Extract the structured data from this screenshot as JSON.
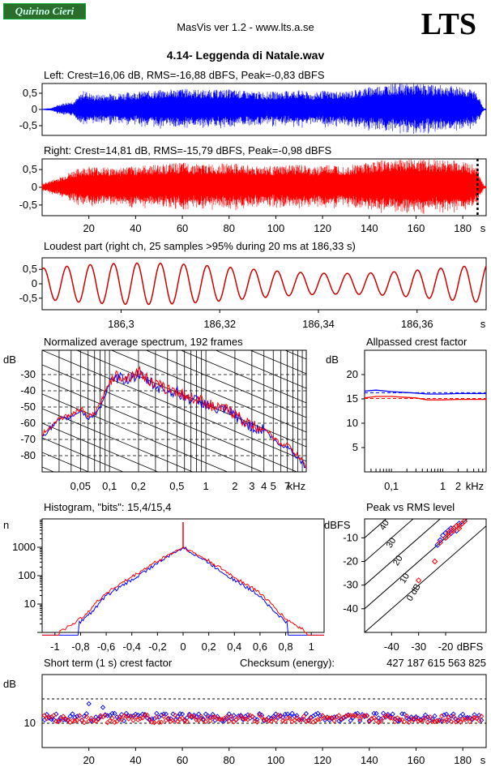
{
  "header": {
    "badge": "Quirino Cieri",
    "app_title": "MasVis ver 1.2 - www.lts.a.se",
    "logo": "LTS",
    "file_title": "4.14- Leggenda di Natale.wav"
  },
  "colors": {
    "left": "#0000ff",
    "right": "#ff0000",
    "wave_detail": "#cc0000"
  },
  "chart_data": [
    {
      "id": "left_waveform",
      "type": "area",
      "title": "Left: Crest=16,06 dB, RMS=-16,88 dBFS, Peak=-0,83 dBFS",
      "y_ticks": [
        "0,5",
        "0",
        "-0,5"
      ],
      "ylim": [
        -0.8,
        0.8
      ],
      "x_ticks": [],
      "xlabel": "",
      "series": [
        {
          "color": "#0000ff",
          "envelope_t": [
            0,
            4,
            8,
            14,
            18,
            22,
            30,
            40,
            50,
            60,
            70,
            80,
            90,
            100,
            110,
            116,
            120,
            130,
            140,
            150,
            160,
            170,
            180,
            186,
            189
          ],
          "envelope_peak": [
            0.02,
            0.05,
            0.18,
            0.28,
            0.6,
            0.45,
            0.5,
            0.55,
            0.6,
            0.65,
            0.6,
            0.62,
            0.55,
            0.55,
            0.6,
            0.5,
            0.58,
            0.55,
            0.7,
            0.8,
            0.8,
            0.75,
            0.7,
            0.55,
            0.03
          ]
        }
      ]
    },
    {
      "id": "right_waveform",
      "type": "area",
      "title": "Right: Crest=14,81 dB, RMS=-15,79 dBFS, Peak=-0,98 dBFS",
      "y_ticks": [
        "0,5",
        "0",
        "-0,5"
      ],
      "ylim": [
        -0.8,
        0.8
      ],
      "x_ticks": [
        "20",
        "40",
        "60",
        "80",
        "100",
        "120",
        "140",
        "160",
        "180"
      ],
      "xlabel": "s",
      "loudest_marker_s": 186.33,
      "series": [
        {
          "color": "#ff0000",
          "envelope_t": [
            0,
            4,
            8,
            14,
            20,
            30,
            40,
            50,
            60,
            70,
            80,
            90,
            100,
            110,
            116,
            120,
            130,
            140,
            150,
            160,
            170,
            180,
            186,
            189
          ],
          "envelope_peak": [
            0.1,
            0.2,
            0.3,
            0.5,
            0.6,
            0.55,
            0.6,
            0.65,
            0.7,
            0.65,
            0.68,
            0.62,
            0.6,
            0.65,
            0.55,
            0.65,
            0.62,
            0.72,
            0.8,
            0.82,
            0.78,
            0.75,
            0.6,
            0.05
          ]
        }
      ]
    },
    {
      "id": "loudest_part",
      "type": "line",
      "title": "Loudest part (right ch, 25 samples >95% during 20 ms at 186,33 s)",
      "y_ticks": [
        "0,5",
        "0",
        "-0,5"
      ],
      "ylim": [
        -0.9,
        0.9
      ],
      "x_ticks": [
        "186,3",
        "186,32",
        "186,34",
        "186,36"
      ],
      "xlabel": "s",
      "xlim": [
        186.284,
        186.374
      ],
      "series": [
        {
          "color": "#cc0000",
          "cycles_per_window": 19,
          "amplitude": 0.72
        }
      ]
    },
    {
      "id": "avg_spectrum",
      "type": "line",
      "title": "Normalized average spectrum, 192 frames",
      "ylabel": "dB",
      "y_ticks": [
        "-30",
        "-40",
        "-50",
        "-60",
        "-70",
        "-80"
      ],
      "ylim": [
        -90,
        -15
      ],
      "x_ticks": [
        "0,05",
        "0,1",
        "0,2",
        "0,5",
        "1",
        "2",
        "3",
        "4",
        "5",
        "7"
      ],
      "xlabel": "kHz",
      "xlim_khz": [
        0.02,
        11
      ],
      "series": [
        {
          "name": "L",
          "color": "#0000ff",
          "khz": [
            0.02,
            0.03,
            0.04,
            0.05,
            0.06,
            0.07,
            0.08,
            0.1,
            0.12,
            0.15,
            0.2,
            0.25,
            0.3,
            0.4,
            0.5,
            0.6,
            0.8,
            1.0,
            1.3,
            1.6,
            2.0,
            2.5,
            3.0,
            3.5,
            4.0,
            5.0,
            6.0,
            7.0,
            8.0,
            10.0,
            11.0
          ],
          "db": [
            -68,
            -58,
            -56,
            -52,
            -57,
            -55,
            -50,
            -36,
            -32,
            -33,
            -30,
            -34,
            -37,
            -40,
            -41,
            -44,
            -46,
            -48,
            -52,
            -52,
            -55,
            -60,
            -62,
            -64,
            -63,
            -70,
            -74,
            -74,
            -78,
            -84,
            -88
          ]
        },
        {
          "name": "R",
          "color": "#ff0000",
          "khz": [
            0.02,
            0.03,
            0.04,
            0.05,
            0.06,
            0.07,
            0.08,
            0.1,
            0.12,
            0.15,
            0.2,
            0.25,
            0.3,
            0.4,
            0.5,
            0.6,
            0.8,
            1.0,
            1.3,
            1.6,
            2.0,
            2.5,
            3.0,
            3.5,
            4.0,
            5.0,
            6.0,
            7.0,
            8.0,
            10.0,
            11.0
          ],
          "db": [
            -67,
            -57,
            -55,
            -51,
            -56,
            -54,
            -48,
            -34,
            -30,
            -32,
            -28,
            -33,
            -36,
            -39,
            -40,
            -43,
            -45,
            -47,
            -51,
            -51,
            -54,
            -59,
            -61,
            -63,
            -62,
            -69,
            -73,
            -73,
            -77,
            -83,
            -87
          ]
        }
      ]
    },
    {
      "id": "allpassed_crest",
      "type": "line",
      "title": "Allpassed crest factor",
      "ylabel": "dB",
      "y_ticks": [
        "20",
        "15",
        "10",
        "5"
      ],
      "ylim": [
        0,
        25
      ],
      "x_ticks": [
        "0,1",
        "1",
        "2"
      ],
      "xlabel": "kHz",
      "xlim_khz": [
        0.03,
        7
      ],
      "series": [
        {
          "name": "L",
          "color": "#0000ff",
          "khz": [
            0.03,
            0.05,
            0.1,
            0.3,
            0.5,
            1,
            2,
            4,
            7
          ],
          "db": [
            16.6,
            16.8,
            16.5,
            16.2,
            16.0,
            16.0,
            16.1,
            16.1,
            16.1
          ]
        },
        {
          "name": "R",
          "color": "#ff0000",
          "khz": [
            0.03,
            0.05,
            0.1,
            0.3,
            0.5,
            1,
            2,
            4,
            7
          ],
          "db": [
            15.2,
            15.5,
            15.5,
            15.2,
            14.8,
            14.8,
            14.9,
            14.9,
            14.9
          ]
        }
      ]
    },
    {
      "id": "histogram",
      "type": "line",
      "title": "Histogram, \"bits\": 15,4/15,4",
      "ylabel": "n",
      "y_ticks": [
        "1000",
        "100",
        "10"
      ],
      "x_ticks": [
        "-1",
        "-0,8",
        "-0,6",
        "-0,4",
        "-0,2",
        "0",
        "0,2",
        "0,4",
        "0,6",
        "0,8",
        "1"
      ],
      "xlim": [
        -1.1,
        1.1
      ],
      "series": [
        {
          "name": "L",
          "color": "#0000ff",
          "x": [
            -0.82,
            -0.7,
            -0.6,
            -0.4,
            -0.2,
            0,
            0.2,
            0.4,
            0.6,
            0.7,
            0.82
          ],
          "n": [
            2,
            6,
            20,
            70,
            280,
            1000,
            280,
            70,
            20,
            6,
            2
          ]
        },
        {
          "name": "R",
          "color": "#ff0000",
          "x": [
            -0.97,
            -0.8,
            -0.6,
            -0.4,
            -0.2,
            0,
            0.2,
            0.4,
            0.6,
            0.8,
            0.97
          ],
          "n": [
            1,
            3,
            25,
            90,
            330,
            1000,
            330,
            90,
            25,
            3,
            1
          ]
        }
      ]
    },
    {
      "id": "peak_vs_rms",
      "type": "scatter",
      "title": "Peak vs RMS level",
      "ylabel": "dBFS",
      "y_ticks": [
        "-10",
        "-20",
        "-30",
        "-40"
      ],
      "x_ticks": [
        "-40",
        "-30",
        "-20"
      ],
      "xlabel": "dBFS",
      "xlim": [
        -50,
        -5
      ],
      "ylim": [
        -50,
        -2
      ],
      "crest_lines": [
        "40",
        "30",
        "20",
        "10",
        "0 dB"
      ],
      "series": [
        {
          "name": "L",
          "color": "#0000ff",
          "rms": [
            -23,
            -22,
            -21,
            -20,
            -19,
            -18,
            -17,
            -16,
            -15,
            -14,
            -20,
            -18,
            -16,
            -13
          ],
          "peak": [
            -13,
            -11,
            -9,
            -8,
            -7,
            -6,
            -6,
            -5,
            -4,
            -4,
            -10,
            -8,
            -7,
            -3
          ]
        },
        {
          "name": "R",
          "color": "#ff0000",
          "rms": [
            -30,
            -24,
            -22,
            -20,
            -19,
            -18,
            -17,
            -16,
            -15,
            -14,
            -13,
            -19,
            -17,
            -15
          ],
          "peak": [
            -28,
            -20,
            -12,
            -10,
            -8,
            -7,
            -6,
            -5,
            -5,
            -4,
            -3,
            -9,
            -7,
            -6
          ]
        }
      ]
    },
    {
      "id": "short_term_crest",
      "type": "scatter",
      "title": "Short term (1 s) crest factor",
      "checksum_label": "Checksum (energy):",
      "checksum_value": "427 187 615 563 825",
      "ylabel": "dB",
      "y_ticks": [
        "10"
      ],
      "ylim": [
        0,
        30
      ],
      "x_ticks": [
        "20",
        "40",
        "60",
        "80",
        "100",
        "120",
        "140",
        "160",
        "180"
      ],
      "xlabel": "s",
      "xlim": [
        0,
        190
      ],
      "series": [
        {
          "name": "L",
          "color": "#0000ff",
          "mean_db": 12.5,
          "spread_db": 1.6
        },
        {
          "name": "R",
          "color": "#ff0000",
          "mean_db": 11.8,
          "spread_db": 1.6
        }
      ]
    }
  ]
}
